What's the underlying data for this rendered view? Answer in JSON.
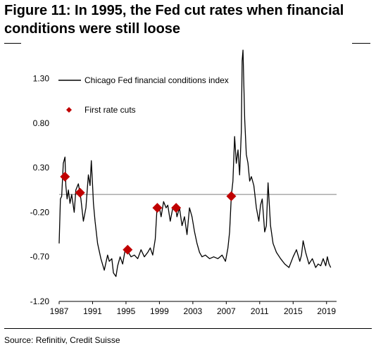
{
  "figure": {
    "title": "Figure 11: In 1995, the Fed cut rates when financial conditions were still loose",
    "source": "Source: Refinitiv, Credit Suisse"
  },
  "chart_data": {
    "type": "line",
    "title": "",
    "xlabel": "",
    "ylabel": "",
    "x_ticks": [
      "1987",
      "1991",
      "1995",
      "1999",
      "2003",
      "2007",
      "2011",
      "2015",
      "2019"
    ],
    "y_ticks": [
      "1.30",
      "0.80",
      "0.30",
      "-0.20",
      "-0.70",
      "-1.20"
    ],
    "xlim": [
      1987,
      2020.2
    ],
    "ylim": [
      -1.2,
      1.55
    ],
    "reference_line": 0.0,
    "legend_position": "top-left",
    "series": [
      {
        "name": "Chicago Fed financial conditions index",
        "style": "line",
        "color": "#000000",
        "x": [
          1987.0,
          1987.15,
          1987.3,
          1987.5,
          1987.7,
          1987.8,
          1987.95,
          1988.1,
          1988.3,
          1988.5,
          1988.8,
          1989.0,
          1989.3,
          1989.6,
          1989.9,
          1990.2,
          1990.5,
          1990.7,
          1990.85,
          1991.0,
          1991.1,
          1991.3,
          1991.6,
          1992.0,
          1992.4,
          1992.8,
          1993.0,
          1993.3,
          1993.5,
          1993.8,
          1994.0,
          1994.3,
          1994.6,
          1994.9,
          1995.0,
          1995.3,
          1995.6,
          1996.0,
          1996.4,
          1996.8,
          1997.2,
          1997.6,
          1997.9,
          1998.2,
          1998.5,
          1998.7,
          1998.8,
          1999.0,
          1999.2,
          1999.5,
          1999.8,
          2000.0,
          2000.3,
          2000.6,
          2000.9,
          2001.1,
          2001.4,
          2001.7,
          2002.0,
          2002.3,
          2002.6,
          2002.9,
          2003.2,
          2003.5,
          2003.8,
          2004.1,
          2004.5,
          2005.0,
          2005.5,
          2006.0,
          2006.5,
          2006.9,
          2007.2,
          2007.4,
          2007.6,
          2007.8,
          2008.0,
          2008.2,
          2008.4,
          2008.6,
          2008.8,
          2008.9,
          2009.0,
          2009.2,
          2009.4,
          2009.6,
          2009.8,
          2010.0,
          2010.3,
          2010.6,
          2010.9,
          2011.1,
          2011.3,
          2011.6,
          2011.8,
          2012.0,
          2012.3,
          2012.6,
          2013.0,
          2013.5,
          2014.0,
          2014.5,
          2015.0,
          2015.4,
          2015.8,
          2016.0,
          2016.2,
          2016.5,
          2016.9,
          2017.3,
          2017.7,
          2018.0,
          2018.3,
          2018.6,
          2018.9,
          2019.1,
          2019.3,
          2019.5
        ],
        "y": [
          -0.55,
          -0.05,
          -0.02,
          0.35,
          0.42,
          0.1,
          -0.05,
          0.05,
          -0.1,
          0.0,
          -0.2,
          0.05,
          0.12,
          -0.05,
          -0.3,
          -0.15,
          0.22,
          0.1,
          0.38,
          0.1,
          -0.1,
          -0.3,
          -0.55,
          -0.72,
          -0.85,
          -0.68,
          -0.75,
          -0.72,
          -0.88,
          -0.92,
          -0.8,
          -0.7,
          -0.78,
          -0.62,
          -0.6,
          -0.65,
          -0.7,
          -0.68,
          -0.72,
          -0.62,
          -0.7,
          -0.65,
          -0.6,
          -0.68,
          -0.5,
          -0.18,
          -0.13,
          -0.15,
          -0.25,
          -0.08,
          -0.15,
          -0.12,
          -0.3,
          -0.15,
          -0.12,
          -0.25,
          -0.15,
          -0.35,
          -0.25,
          -0.45,
          -0.15,
          -0.25,
          -0.42,
          -0.55,
          -0.65,
          -0.7,
          -0.68,
          -0.72,
          -0.7,
          -0.72,
          -0.68,
          -0.75,
          -0.6,
          -0.42,
          -0.02,
          0.15,
          0.65,
          0.35,
          0.5,
          0.22,
          0.7,
          1.5,
          1.62,
          0.85,
          0.45,
          0.35,
          0.15,
          0.2,
          0.1,
          -0.15,
          -0.3,
          -0.12,
          -0.05,
          -0.42,
          -0.35,
          0.13,
          -0.35,
          -0.55,
          -0.65,
          -0.72,
          -0.78,
          -0.82,
          -0.7,
          -0.62,
          -0.75,
          -0.68,
          -0.52,
          -0.65,
          -0.78,
          -0.72,
          -0.82,
          -0.78,
          -0.8,
          -0.72,
          -0.8,
          -0.7,
          -0.78,
          -0.82
        ]
      },
      {
        "name": "First rate cuts",
        "style": "marker",
        "marker": "diamond",
        "color": "#c00000",
        "x": [
          1987.7,
          1989.5,
          1995.2,
          1998.75,
          2001.0,
          2007.6
        ],
        "y": [
          0.2,
          0.02,
          -0.62,
          -0.15,
          -0.15,
          -0.02
        ]
      }
    ]
  }
}
